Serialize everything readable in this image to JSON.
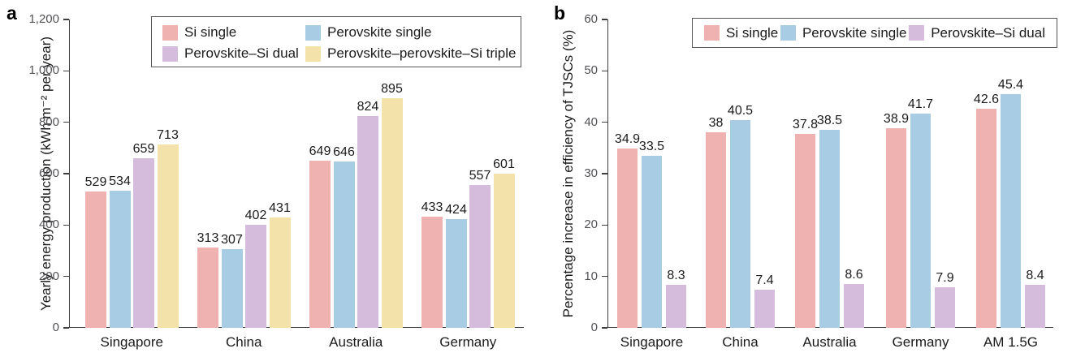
{
  "figure": {
    "kind": "two-panel bar chart figure"
  },
  "chart_data": [
    {
      "type": "bar",
      "panel_label": "a",
      "title": "",
      "xlabel": "",
      "ylabel": "Yearly energy production (kWh m⁻² per year)",
      "ylim": [
        0,
        1200
      ],
      "ytick_labels": [
        "0",
        "200",
        "400",
        "600",
        "800",
        "1,000",
        "1,200"
      ],
      "ytick_values": [
        0,
        200,
        400,
        600,
        800,
        1000,
        1200
      ],
      "grid": false,
      "legend_position": "top inside, 2 columns",
      "categories": [
        "Singapore",
        "China",
        "Australia",
        "Germany"
      ],
      "series": [
        {
          "name": "Si single",
          "color": "#efb2b0",
          "values": [
            529,
            313,
            649,
            433
          ]
        },
        {
          "name": "Perovskite single",
          "color": "#a9cce5",
          "values": [
            534,
            307,
            646,
            424
          ]
        },
        {
          "name": "Perovskite–Si dual",
          "color": "#d5bcdc",
          "values": [
            659,
            402,
            824,
            557
          ]
        },
        {
          "name": "Perovskite–perovskite–Si triple",
          "color": "#f3e2a9",
          "values": [
            713,
            431,
            895,
            601
          ]
        }
      ]
    },
    {
      "type": "bar",
      "panel_label": "b",
      "title": "",
      "xlabel": "",
      "ylabel": "Percentage increase in efficiency of TJSCs (%)",
      "ylim": [
        0,
        60
      ],
      "ytick_labels": [
        "0",
        "10",
        "20",
        "30",
        "40",
        "50",
        "60"
      ],
      "ytick_values": [
        0,
        10,
        20,
        30,
        40,
        50,
        60
      ],
      "grid": false,
      "legend_position": "top inside, 1 row",
      "categories": [
        "Singapore",
        "China",
        "Australia",
        "Germany",
        "AM 1.5G"
      ],
      "series": [
        {
          "name": "Si single",
          "color": "#efb2b0",
          "values": [
            34.9,
            38,
            37.8,
            38.9,
            42.6
          ]
        },
        {
          "name": "Perovskite single",
          "color": "#a9cce5",
          "values": [
            33.5,
            40.5,
            38.5,
            41.7,
            45.4
          ]
        },
        {
          "name": "Perovskite–Si dual",
          "color": "#d5bcdc",
          "values": [
            8.3,
            7.4,
            8.6,
            7.9,
            8.4
          ]
        }
      ]
    }
  ]
}
